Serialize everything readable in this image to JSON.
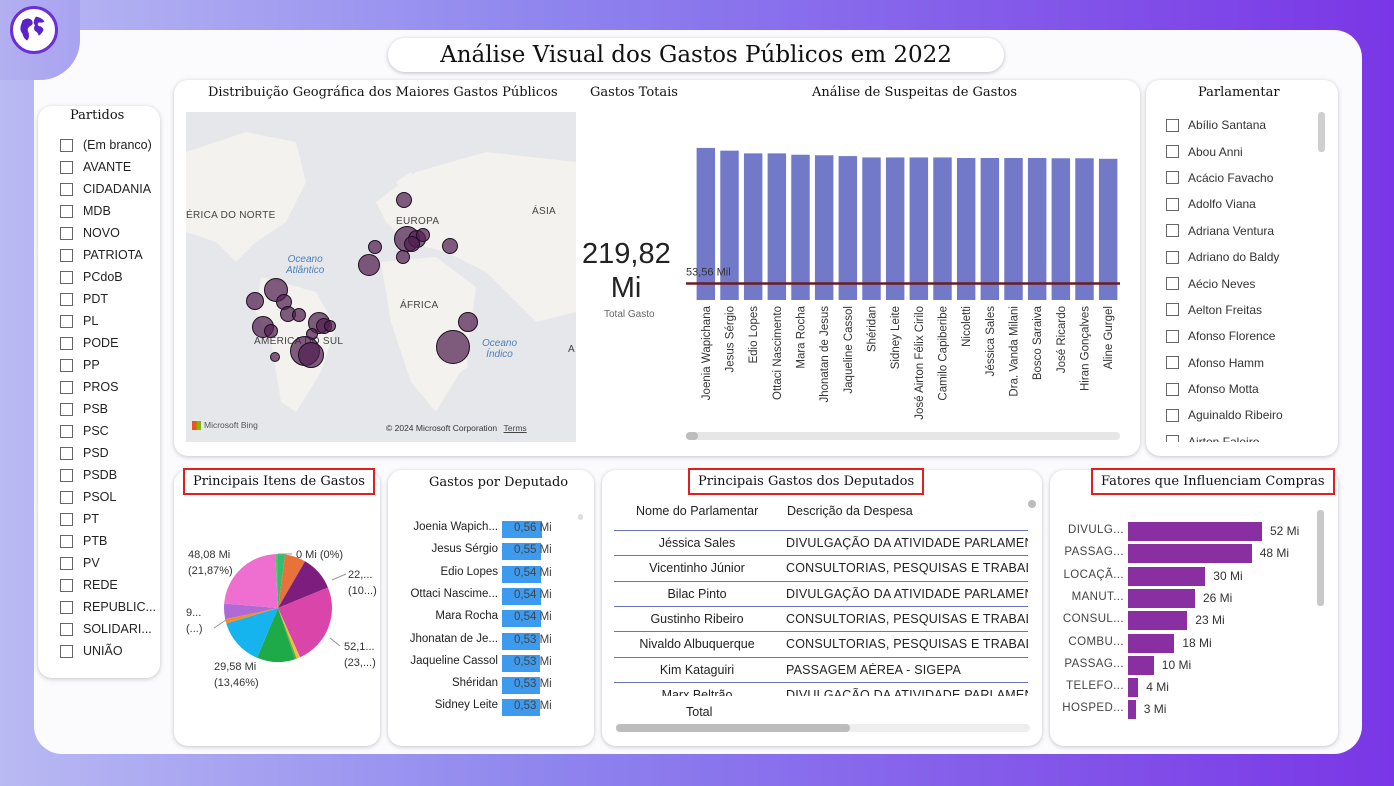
{
  "header": {
    "title": "Análise Visual dos Gastos Públicos em 2022"
  },
  "partidos": {
    "title": "Partidos",
    "items": [
      "(Em branco)",
      "AVANTE",
      "CIDADANIA",
      "MDB",
      "NOVO",
      "PATRIOTA",
      "PCdoB",
      "PDT",
      "PL",
      "PODE",
      "PP",
      "PROS",
      "PSB",
      "PSC",
      "PSD",
      "PSDB",
      "PSOL",
      "PT",
      "PTB",
      "PV",
      "REDE",
      "REPUBLIC...",
      "SOLIDARI...",
      "UNIÃO"
    ]
  },
  "map": {
    "title": "Distribuição Geográfica dos Maiores Gastos Públicos",
    "labels": {
      "north_america": "ÉRICA DO NORTE",
      "europe": "EUROPA",
      "asia": "ÁSIA",
      "africa": "ÁFRICA",
      "south_america": "AMÉRICA DO SUL",
      "edge_a": "A"
    },
    "oceans": {
      "atlantic_1": "Oceano",
      "atlantic_2": "Atlântico",
      "indian_1": "Oceano",
      "indian_2": "Índico"
    },
    "bing": "Microsoft Bing",
    "copyright": "© 2024 Microsoft Corporation",
    "terms": "Terms"
  },
  "total": {
    "title": "Gastos Totais",
    "value_line1": "219,82",
    "value_line2": "Mi",
    "label": "Total Gasto"
  },
  "suspeitas": {
    "title": "Análise de Suspeitas de Gastos",
    "avg_label": "53,56 Mil"
  },
  "chart_data": [
    {
      "type": "bar",
      "title": "Análise de Suspeitas de Gastos",
      "categories": [
        "Joenia Wapichana",
        "Jesus Sérgio",
        "Edio Lopes",
        "Ottaci Nascimento",
        "Mara Rocha",
        "Jhonatan de Jesus",
        "Jaqueline Cassol",
        "Shéridan",
        "Sidney Leite",
        "José Airton Félix Cirilo",
        "Camilo Capiberibe",
        "Nicoletti",
        "Jéssica Sales",
        "Dra. Vanda Milani",
        "Bosco Saraiva",
        "José Ricardo",
        "Hiran Gonçalves",
        "Aline Gurgel"
      ],
      "values": [
        0.56,
        0.55,
        0.54,
        0.54,
        0.535,
        0.533,
        0.53,
        0.525,
        0.525,
        0.525,
        0.525,
        0.523,
        0.523,
        0.523,
        0.523,
        0.522,
        0.522,
        0.52
      ],
      "reference_line": 0.05356,
      "ylim": [
        0,
        0.6
      ]
    },
    {
      "type": "pie",
      "title": "Principais Itens de Gastos",
      "labels": [
        "48,08 Mi",
        "(21,87%)",
        "0 Mi (0%)",
        "22,...",
        "(10...)",
        "52,1...",
        "(23,...)",
        "29,58 Mi",
        "(13,46%)",
        "9...",
        "(...)"
      ],
      "slices": [
        {
          "value": 0.02,
          "color": "#2fbf71"
        },
        {
          "value": 0.06,
          "color": "#e8733a"
        },
        {
          "value": 0.1,
          "color": "#7d1e7f"
        },
        {
          "value": 0.235,
          "color": "#d945a8"
        },
        {
          "value": 0.01,
          "color": "#f2c036"
        },
        {
          "value": 0.005,
          "color": "#6aa84f"
        },
        {
          "value": 0.11,
          "color": "#1faa4a"
        },
        {
          "value": 0.1346,
          "color": "#15b4ee"
        },
        {
          "value": 0.012,
          "color": "#f28d2b"
        },
        {
          "value": 0.045,
          "color": "#b06ad6"
        },
        {
          "value": 0.2187,
          "color": "#ee6fd0"
        },
        {
          "value": 0.008,
          "color": "#60c060"
        }
      ]
    },
    {
      "type": "bar",
      "title": "Gastos por Deputado",
      "categories": [
        "Joenia Wapich...",
        "Jesus Sérgio",
        "Edio Lopes",
        "Ottaci Nascime...",
        "Mara Rocha",
        "Jhonatan de Je...",
        "Jaqueline Cassol",
        "Shéridan",
        "Sidney Leite"
      ],
      "values": [
        0.56,
        0.55,
        0.54,
        0.54,
        0.54,
        0.53,
        0.53,
        0.53,
        0.53
      ],
      "value_labels": [
        "0,56 Mi",
        "0,55 Mi",
        "0,54 Mi",
        "0,54 Mi",
        "0,54 Mi",
        "0,53 Mi",
        "0,53 Mi",
        "0,53 Mi",
        "0,53 Mi"
      ]
    },
    {
      "type": "bar",
      "title": "Fatores que Influenciam Compras",
      "categories": [
        "DIVULG...",
        "PASSAG...",
        "LOCAÇÃ...",
        "MANUT...",
        "CONSUL...",
        "COMBU...",
        "PASSAG...",
        "TELEFO...",
        "HOSPED..."
      ],
      "values": [
        52,
        48,
        30,
        26,
        23,
        18,
        10,
        4,
        3
      ],
      "value_labels": [
        "52 Mi",
        "48 Mi",
        "30 Mi",
        "26 Mi",
        "23 Mi",
        "18 Mi",
        "10 Mi",
        "4 Mi",
        "3 Mi"
      ]
    }
  ],
  "parlamentar": {
    "title": "Parlamentar",
    "items": [
      "Abílio Santana",
      "Abou Anni",
      "Acácio Favacho",
      "Adolfo Viana",
      "Adriana Ventura",
      "Adriano do Baldy",
      "Aécio Neves",
      "Aelton Freitas",
      "Afonso Florence",
      "Afonso Hamm",
      "Afonso Motta",
      "Aguinaldo Ribeiro",
      "Airton Faleiro"
    ]
  },
  "itens": {
    "title": "Principais Itens de Gastos"
  },
  "deputado": {
    "title": "Gastos por Deputado"
  },
  "principais": {
    "title": "Principais Gastos dos Deputados",
    "columns": [
      "Nome do Parlamentar",
      "Descrição da Despesa"
    ],
    "rows": [
      [
        "Jéssica Sales",
        "DIVULGAÇÃO DA ATIVIDADE PARLAMENTAR"
      ],
      [
        "Vicentinho Júnior",
        "CONSULTORIAS, PESQUISAS E TRABALHOS"
      ],
      [
        "Bilac Pinto",
        "DIVULGAÇÃO DA ATIVIDADE PARLAMENTAR"
      ],
      [
        "Gustinho Ribeiro",
        "CONSULTORIAS, PESQUISAS E TRABALHOS"
      ],
      [
        "Nivaldo Albuquerque",
        "CONSULTORIAS, PESQUISAS E TRABALHOS"
      ],
      [
        "Kim Kataguiri",
        "PASSAGEM AÉREA - SIGEPA"
      ],
      [
        "Marx Beltrão",
        "DIVULGAÇÃO DA ATIVIDADE PARLAMENTAR"
      ]
    ],
    "total_label": "Total"
  },
  "fatores": {
    "title": "Fatores que Influenciam Compras"
  }
}
